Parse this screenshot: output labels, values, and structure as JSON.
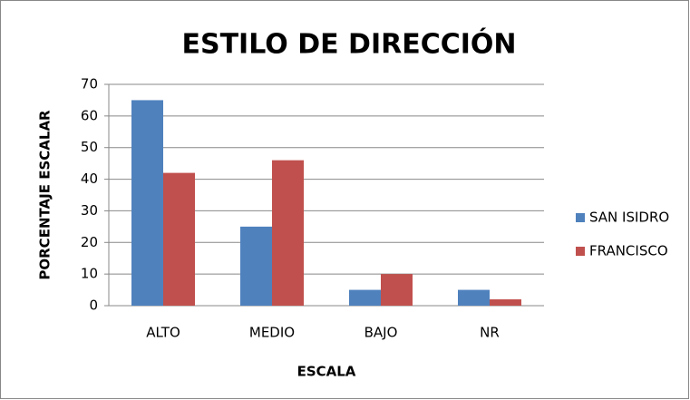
{
  "chart_data": {
    "type": "bar",
    "title": "ESTILO DE DIRECCIÓN",
    "x_label": "ESCALA",
    "y_label": "PORCENTAJE ESCALAR",
    "categories": [
      "ALTO",
      "MEDIO",
      "BAJO",
      "NR"
    ],
    "series": [
      {
        "name": "SAN ISIDRO",
        "color": "#4f81bd",
        "values": [
          65,
          25,
          5,
          5
        ]
      },
      {
        "name": "FRANCISCO",
        "color": "#c0504d",
        "values": [
          42,
          46,
          10,
          2
        ]
      }
    ],
    "ylim": [
      0,
      70
    ],
    "yticks": [
      0,
      10,
      20,
      30,
      40,
      50,
      60,
      70
    ],
    "grid": true,
    "legend": "right"
  }
}
